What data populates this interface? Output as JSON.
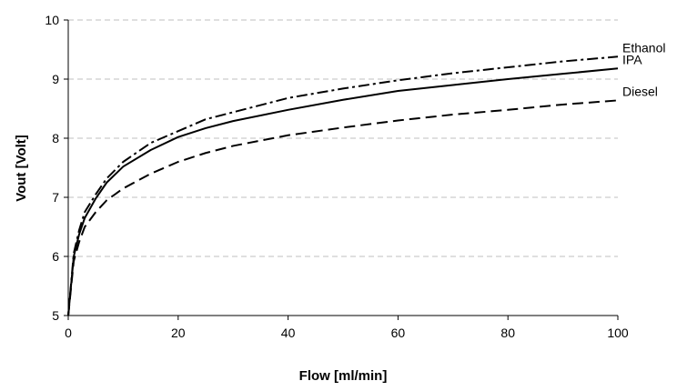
{
  "chart_data": {
    "type": "line",
    "title": "",
    "xlabel": "Flow [ml/min]",
    "ylabel": "Vout [Volt]",
    "xlim": [
      0,
      100
    ],
    "ylim": [
      5,
      10
    ],
    "x_ticks": [
      "0",
      "20",
      "40",
      "60",
      "80",
      "100"
    ],
    "y_ticks": [
      "5",
      "6",
      "7",
      "8",
      "9",
      "10"
    ],
    "grid": "horizontal dashed",
    "legend": "labels at line ends (right)",
    "series": [
      {
        "name": "Ethanol",
        "style": "dash-dot",
        "color": "#000000",
        "x": [
          0,
          1,
          2,
          3,
          5,
          7,
          10,
          15,
          20,
          25,
          30,
          40,
          50,
          60,
          70,
          80,
          90,
          100
        ],
        "y": [
          5.0,
          6.05,
          6.45,
          6.75,
          7.05,
          7.32,
          7.6,
          7.92,
          8.12,
          8.32,
          8.44,
          8.68,
          8.84,
          8.98,
          9.1,
          9.2,
          9.3,
          9.38
        ]
      },
      {
        "name": "IPA",
        "style": "solid",
        "color": "#000000",
        "x": [
          0,
          1,
          2,
          3,
          5,
          7,
          10,
          15,
          20,
          25,
          30,
          40,
          50,
          60,
          70,
          80,
          90,
          100
        ],
        "y": [
          5.0,
          6.0,
          6.38,
          6.65,
          6.98,
          7.25,
          7.52,
          7.8,
          8.02,
          8.17,
          8.29,
          8.48,
          8.65,
          8.8,
          8.9,
          9.0,
          9.09,
          9.18
        ]
      },
      {
        "name": "Diesel",
        "style": "dashed",
        "color": "#000000",
        "x": [
          0,
          1,
          2,
          3,
          5,
          7,
          10,
          15,
          20,
          25,
          30,
          40,
          50,
          60,
          70,
          80,
          90,
          100
        ],
        "y": [
          5.0,
          5.92,
          6.25,
          6.5,
          6.75,
          6.95,
          7.15,
          7.4,
          7.6,
          7.75,
          7.87,
          8.05,
          8.18,
          8.3,
          8.4,
          8.48,
          8.57,
          8.64
        ]
      }
    ]
  }
}
